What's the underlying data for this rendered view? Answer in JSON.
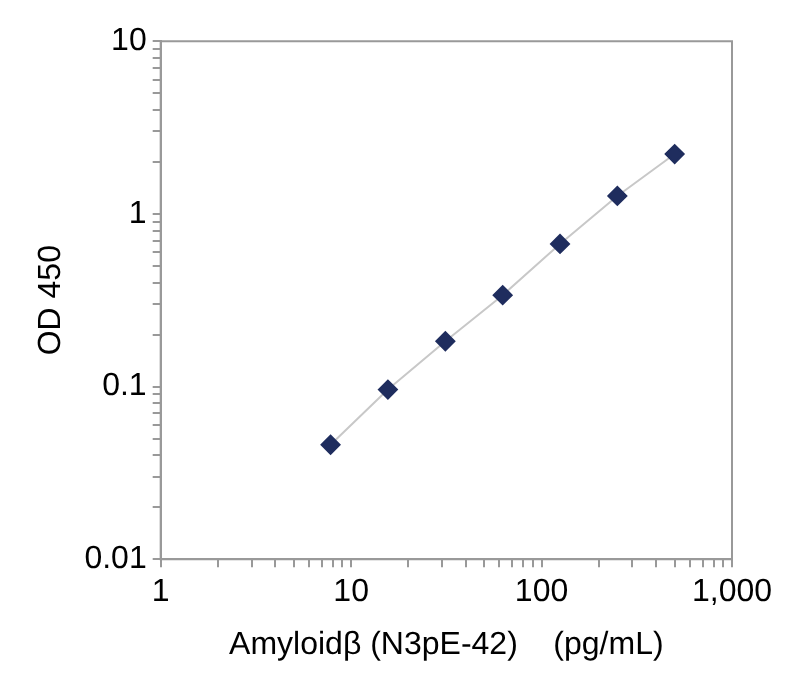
{
  "chart_data": {
    "type": "scatter",
    "xlabel": "Amyloidβ (N3pE-42)    (pg/mL)",
    "ylabel": "OD 450",
    "x": [
      7.8,
      15.6,
      31.25,
      62.5,
      125,
      250,
      500
    ],
    "series": [
      {
        "type": "line",
        "color": "#c8c8c8",
        "marker": "none",
        "values": [
          0.046,
          0.096,
          0.183,
          0.338,
          0.67,
          1.27,
          2.22
        ]
      },
      {
        "type": "scatter",
        "color": "#1f2d5e",
        "marker": "diamond",
        "values": [
          0.046,
          0.096,
          0.183,
          0.338,
          0.67,
          1.27,
          2.22
        ]
      }
    ],
    "log": "xy",
    "grid": false,
    "legend": false,
    "xlim": [
      1,
      1000
    ],
    "ylim": [
      0.01,
      10
    ],
    "xticks": [
      1,
      {
        "value": 2,
        "label": null
      },
      {
        "value": 3,
        "label": null
      },
      {
        "value": 4,
        "label": null
      },
      {
        "value": 5,
        "label": null
      },
      {
        "value": 6,
        "label": null
      },
      {
        "value": 7,
        "label": null
      },
      {
        "value": 8,
        "label": null
      },
      {
        "value": 9,
        "label": null
      },
      10,
      {
        "value": 20,
        "label": null
      },
      {
        "value": 30,
        "label": null
      },
      {
        "value": 40,
        "label": null
      },
      {
        "value": 50,
        "label": null
      },
      {
        "value": 60,
        "label": null
      },
      {
        "value": 70,
        "label": null
      },
      {
        "value": 80,
        "label": null
      },
      {
        "value": 90,
        "label": null
      },
      100,
      {
        "value": 200,
        "label": null
      },
      {
        "value": 300,
        "label": null
      },
      {
        "value": 400,
        "label": null
      },
      {
        "value": 500,
        "label": null
      },
      {
        "value": 600,
        "label": null
      },
      {
        "value": 700,
        "label": null
      },
      {
        "value": 800,
        "label": null
      },
      {
        "value": 900,
        "label": null
      },
      {
        "value": 1000,
        "label": "1,000"
      }
    ],
    "yticks": [
      0.01,
      {
        "value": 0.02,
        "label": null
      },
      {
        "value": 0.03,
        "label": null
      },
      {
        "value": 0.04,
        "label": null
      },
      {
        "value": 0.05,
        "label": null
      },
      {
        "value": 0.06,
        "label": null
      },
      {
        "value": 0.07,
        "label": null
      },
      {
        "value": 0.08,
        "label": null
      },
      {
        "value": 0.09,
        "label": null
      },
      0.1,
      {
        "value": 0.2,
        "label": null
      },
      {
        "value": 0.3,
        "label": null
      },
      {
        "value": 0.4,
        "label": null
      },
      {
        "value": 0.5,
        "label": null
      },
      {
        "value": 0.6,
        "label": null
      },
      {
        "value": 0.7,
        "label": null
      },
      {
        "value": 0.8,
        "label": null
      },
      {
        "value": 0.9,
        "label": null
      },
      1,
      {
        "value": 2,
        "label": null
      },
      {
        "value": 3,
        "label": null
      },
      {
        "value": 4,
        "label": null
      },
      {
        "value": 5,
        "label": null
      },
      {
        "value": 6,
        "label": null
      },
      {
        "value": 7,
        "label": null
      },
      {
        "value": 8,
        "label": null
      },
      {
        "value": 9,
        "label": null
      },
      10
    ]
  }
}
